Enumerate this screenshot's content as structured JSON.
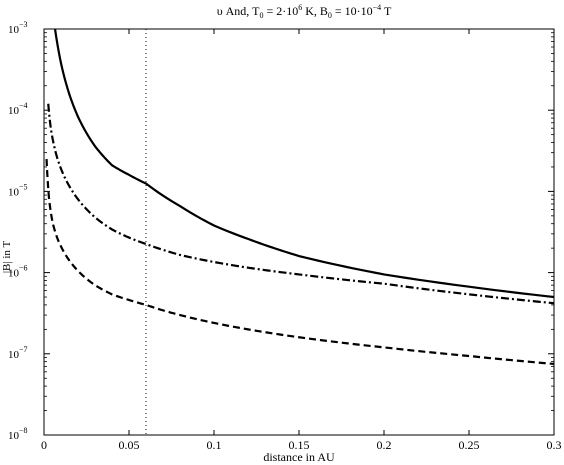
{
  "chart_data": {
    "type": "line",
    "title": {
      "star": "υ And, T",
      "t_sub": "0",
      "t_eq": " = 2·10",
      "t_exp": "6",
      "t_unit": " K, B",
      "b_sub": "0",
      "b_eq": " = 10·10",
      "b_exp": "−4",
      "b_unit": " T"
    },
    "xlabel": "distance in AU",
    "ylabel": "|B| in T",
    "xlim": [
      0,
      0.3
    ],
    "ylim_log10": [
      -8,
      -3
    ],
    "y_scale": "log",
    "x_ticks": [
      {
        "v": 0,
        "label": "0"
      },
      {
        "v": 0.05,
        "label": "0.05"
      },
      {
        "v": 0.1,
        "label": "0.1"
      },
      {
        "v": 0.15,
        "label": "0.15"
      },
      {
        "v": 0.2,
        "label": "0.2"
      },
      {
        "v": 0.25,
        "label": "0.25"
      },
      {
        "v": 0.3,
        "label": "0.3"
      }
    ],
    "y_ticks": [
      {
        "exp": -8,
        "base": "10",
        "sup": "−8"
      },
      {
        "exp": -7,
        "base": "10",
        "sup": "−7"
      },
      {
        "exp": -6,
        "base": "10",
        "sup": "−6"
      },
      {
        "exp": -5,
        "base": "10",
        "sup": "−5"
      },
      {
        "exp": -4,
        "base": "10",
        "sup": "−4"
      },
      {
        "exp": -3,
        "base": "10",
        "sup": "−3"
      }
    ],
    "vline": {
      "x": 0.06,
      "style": "dotted"
    },
    "series": [
      {
        "style": "solid",
        "x": [
          0.0065,
          0.008,
          0.01,
          0.015,
          0.02,
          0.03,
          0.04,
          0.05,
          0.06,
          0.08,
          0.1,
          0.12,
          0.15,
          0.2,
          0.25,
          0.3
        ],
        "y": [
          0.001,
          0.00063,
          0.00038,
          0.000155,
          8.3e-05,
          3.6e-05,
          2.1e-05,
          1.6e-05,
          1.25e-05,
          6.6e-06,
          3.8e-06,
          2.6e-06,
          1.6e-06,
          9.5e-07,
          6.7e-07,
          5e-07
        ]
      },
      {
        "style": "dashdot",
        "x": [
          0.0025,
          0.004,
          0.006,
          0.008,
          0.01,
          0.015,
          0.02,
          0.03,
          0.04,
          0.05,
          0.06,
          0.08,
          0.1,
          0.12,
          0.15,
          0.2,
          0.25,
          0.3
        ],
        "y": [
          0.00012,
          6e-05,
          3.6e-05,
          2.5e-05,
          1.9e-05,
          1.15e-05,
          8e-06,
          4.8e-06,
          3.4e-06,
          2.7e-06,
          2.25e-06,
          1.65e-06,
          1.35e-06,
          1.15e-06,
          9.5e-07,
          7.3e-07,
          5.4e-07,
          4.2e-07
        ]
      },
      {
        "style": "dashed",
        "x": [
          0.0015,
          0.003,
          0.005,
          0.008,
          0.01,
          0.015,
          0.02,
          0.03,
          0.04,
          0.05,
          0.06,
          0.08,
          0.1,
          0.12,
          0.15,
          0.2,
          0.25,
          0.3
        ],
        "y": [
          2.5e-05,
          8e-06,
          4.2e-06,
          2.6e-06,
          2.1e-06,
          1.4e-06,
          1.05e-06,
          7e-07,
          5.4e-07,
          4.6e-07,
          4e-07,
          3e-07,
          2.4e-07,
          2e-07,
          1.6e-07,
          1.2e-07,
          9.4e-08,
          7.5e-08
        ]
      }
    ]
  }
}
